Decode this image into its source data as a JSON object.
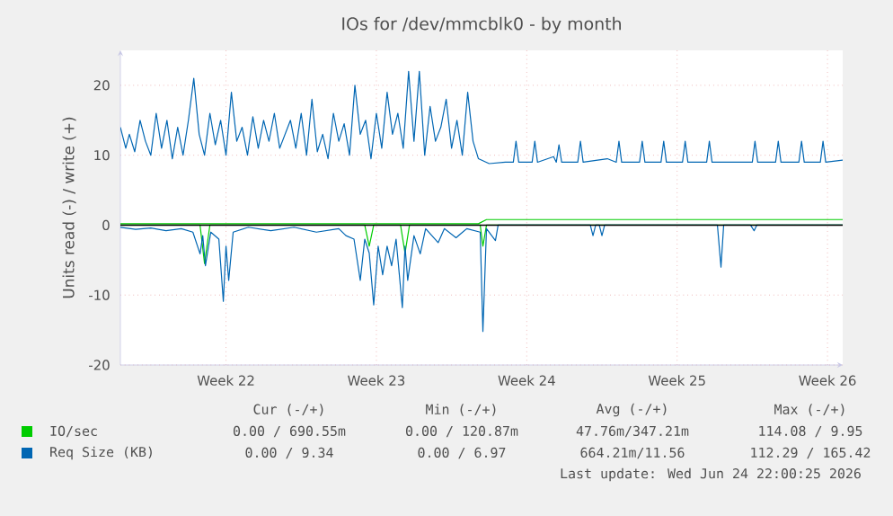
{
  "chart_data": {
    "type": "line",
    "title": "IOs for /dev/mmcblk0 - by month",
    "ylabel": "Units read (-) / write (+)",
    "xlim": [
      "2026-05-23T14:00",
      "2026-06-26T05:00"
    ],
    "ylim": [
      -20,
      25
    ],
    "xticks": [
      {
        "value": "2026-05-28T12:00",
        "label": "Week 22"
      },
      {
        "value": "2026-06-04T12:00",
        "label": "Week 23"
      },
      {
        "value": "2026-06-11T12:00",
        "label": "Week 24"
      },
      {
        "value": "2026-06-18T12:00",
        "label": "Week 25"
      },
      {
        "value": "2026-06-25T12:00",
        "label": "Week 26"
      }
    ],
    "yticks": [
      -20,
      -10,
      0,
      10,
      20
    ],
    "grid": true,
    "legend": "bottom",
    "ref_lines": [
      {
        "axis": "y",
        "value": 0,
        "color": "#000000"
      }
    ],
    "series": [
      {
        "name": "IO/sec",
        "color": "#00cc00",
        "x": [
          "2026-05-23T14:00",
          "2026-06-09T06:00",
          "2026-06-09T15:00",
          "2026-06-26T05:00"
        ],
        "values": [
          0.2,
          0.2,
          0.8,
          0.8
        ]
      },
      {
        "color": "#00cc00",
        "x": [
          "2026-05-23T14:00",
          "2026-05-27T07:00",
          "2026-05-27T12:00",
          "2026-05-27T18:00",
          "2026-06-03T23:00",
          "2026-06-04T04:00",
          "2026-06-04T09:00",
          "2026-06-05T15:00",
          "2026-06-05T20:00",
          "2026-06-06T01:00",
          "2026-06-09T08:00",
          "2026-06-09T11:00",
          "2026-06-09T15:00",
          "2026-06-26T05:00"
        ],
        "values": [
          0,
          0,
          -5.5,
          0,
          0,
          -3,
          0,
          0,
          -4,
          0,
          0,
          -3,
          0,
          0
        ]
      },
      {
        "name": "Req Size (KB)",
        "color": "#0066b3",
        "x": [
          "2026-05-23T14:00",
          "2026-05-23T20:00",
          "2026-05-24T00:00",
          "2026-05-24T06:00",
          "2026-05-24T12:00",
          "2026-05-24T18:00",
          "2026-05-25T00:00",
          "2026-05-25T06:00",
          "2026-05-25T12:00",
          "2026-05-25T18:00",
          "2026-05-26T00:00",
          "2026-05-26T06:00",
          "2026-05-26T12:00",
          "2026-05-26T18:00",
          "2026-05-27T00:00",
          "2026-05-27T06:00",
          "2026-05-27T12:00",
          "2026-05-27T18:00",
          "2026-05-28T00:00",
          "2026-05-28T06:00",
          "2026-05-28T12:00",
          "2026-05-28T18:00",
          "2026-05-29T00:00",
          "2026-05-29T06:00",
          "2026-05-29T12:00",
          "2026-05-29T18:00",
          "2026-05-30T00:00",
          "2026-05-30T06:00",
          "2026-05-30T12:00",
          "2026-05-30T18:00",
          "2026-05-31T00:00",
          "2026-05-31T06:00",
          "2026-05-31T12:00",
          "2026-05-31T18:00",
          "2026-06-01T00:00",
          "2026-06-01T06:00",
          "2026-06-01T12:00",
          "2026-06-01T18:00",
          "2026-06-02T00:00",
          "2026-06-02T06:00",
          "2026-06-02T12:00",
          "2026-06-02T18:00",
          "2026-06-03T00:00",
          "2026-06-03T06:00",
          "2026-06-03T12:00",
          "2026-06-03T18:00",
          "2026-06-04T00:00",
          "2026-06-04T06:00",
          "2026-06-04T12:00",
          "2026-06-04T18:00",
          "2026-06-05T00:00",
          "2026-06-05T06:00",
          "2026-06-05T12:00",
          "2026-06-05T18:00",
          "2026-06-06T00:00",
          "2026-06-06T06:00",
          "2026-06-06T12:00",
          "2026-06-06T18:00",
          "2026-06-07T00:00",
          "2026-06-07T06:00",
          "2026-06-07T12:00",
          "2026-06-07T18:00",
          "2026-06-08T00:00",
          "2026-06-08T06:00",
          "2026-06-08T12:00",
          "2026-06-08T18:00",
          "2026-06-09T00:00",
          "2026-06-09T06:00",
          "2026-06-09T18:00",
          "2026-06-10T12:00",
          "2026-06-10T21:00",
          "2026-06-11T00:00",
          "2026-06-11T03:00",
          "2026-06-11T18:00",
          "2026-06-11T21:00",
          "2026-06-12T00:00",
          "2026-06-12T18:00",
          "2026-06-12T21:00",
          "2026-06-13T00:00",
          "2026-06-13T03:00",
          "2026-06-13T21:00",
          "2026-06-14T00:00",
          "2026-06-14T03:00",
          "2026-06-15T06:00",
          "2026-06-15T16:00",
          "2026-06-15T19:00",
          "2026-06-15T22:00",
          "2026-06-16T18:00",
          "2026-06-16T21:00",
          "2026-06-17T00:00",
          "2026-06-17T18:00",
          "2026-06-17T21:00",
          "2026-06-18T00:00",
          "2026-06-18T18:00",
          "2026-06-18T21:00",
          "2026-06-19T00:00",
          "2026-06-19T21:00",
          "2026-06-20T00:00",
          "2026-06-20T03:00",
          "2026-06-21T12:00",
          "2026-06-22T00:00",
          "2026-06-22T03:00",
          "2026-06-22T06:00",
          "2026-06-23T02:00",
          "2026-06-23T05:00",
          "2026-06-23T08:00",
          "2026-06-24T04:00",
          "2026-06-24T07:00",
          "2026-06-24T10:00",
          "2026-06-25T04:00",
          "2026-06-25T07:00",
          "2026-06-25T10:00",
          "2026-06-26T05:00"
        ],
        "values": [
          14,
          11,
          13,
          10.5,
          15,
          12,
          10,
          16,
          11,
          15,
          9.5,
          14,
          10,
          15,
          21,
          13,
          10,
          16,
          11.5,
          15,
          10,
          19,
          12,
          14,
          10,
          15.5,
          11,
          15,
          12,
          16,
          11,
          13,
          15,
          11,
          16,
          10,
          18,
          10.5,
          13,
          9.5,
          16,
          12,
          14.5,
          10,
          20,
          13,
          15,
          9.5,
          16,
          11,
          19,
          13,
          16,
          11,
          22,
          12,
          22,
          10,
          17,
          12,
          14,
          18,
          11,
          15,
          10,
          19,
          12,
          9.5,
          8.8,
          9,
          9,
          12,
          9,
          9,
          12,
          9,
          9.8,
          9,
          11.5,
          9,
          9,
          12,
          9,
          9.5,
          9,
          12,
          9,
          9,
          12,
          9,
          9,
          12,
          9,
          9,
          12,
          9,
          9,
          12,
          9,
          9,
          9,
          12,
          9,
          9,
          12,
          9,
          9,
          12,
          9,
          9,
          12,
          9,
          9.3
        ]
      },
      {
        "color": "#0066b3",
        "x": [
          "2026-05-23T14:00",
          "2026-05-24T07:00",
          "2026-05-25T00:00",
          "2026-05-25T17:00",
          "2026-05-26T10:00",
          "2026-05-26T23:00",
          "2026-05-27T07:00",
          "2026-05-27T10:00",
          "2026-05-27T13:00",
          "2026-05-27T19:00",
          "2026-05-28T04:00",
          "2026-05-28T09:00",
          "2026-05-28T12:00",
          "2026-05-28T15:00",
          "2026-05-28T20:00",
          "2026-05-29T13:00",
          "2026-05-30T14:00",
          "2026-05-31T16:00",
          "2026-06-01T17:00",
          "2026-06-02T18:00",
          "2026-06-03T02:00",
          "2026-06-03T11:00",
          "2026-06-03T18:00",
          "2026-06-03T23:00",
          "2026-06-04T04:00",
          "2026-06-04T09:00",
          "2026-06-04T14:00",
          "2026-06-04T19:00",
          "2026-06-05T00:00",
          "2026-06-05T05:00",
          "2026-06-05T10:00",
          "2026-06-05T17:00",
          "2026-06-05T20:00",
          "2026-06-05T23:00",
          "2026-06-06T06:00",
          "2026-06-06T13:00",
          "2026-06-06T19:00",
          "2026-06-07T09:00",
          "2026-06-07T16:00",
          "2026-06-08T05:00",
          "2026-06-08T17:00",
          "2026-06-09T08:00",
          "2026-06-09T11:00",
          "2026-06-09T15:00",
          "2026-06-10T01:00",
          "2026-06-10T04:00",
          "2026-06-14T11:00",
          "2026-06-14T14:00",
          "2026-06-14T17:00",
          "2026-06-14T21:00",
          "2026-06-15T00:00",
          "2026-06-15T03:00",
          "2026-06-20T09:00",
          "2026-06-20T13:00",
          "2026-06-20T16:00",
          "2026-06-21T22:00",
          "2026-06-22T02:00",
          "2026-06-22T05:00",
          "2026-06-26T05:00"
        ],
        "values": [
          -0.3,
          -0.6,
          -0.4,
          -0.8,
          -0.5,
          -1,
          -4.1,
          -1.5,
          -5.8,
          -1,
          -2,
          -10.9,
          -3,
          -7.9,
          -1,
          -0.3,
          -0.8,
          -0.3,
          -1,
          -0.5,
          -1.5,
          -2,
          -7.9,
          -2,
          -4,
          -11.4,
          -3,
          -7.1,
          -3,
          -5.8,
          -2,
          -11.8,
          -3,
          -7.9,
          -1.5,
          -4.1,
          -0.5,
          -2.5,
          -0.5,
          -1.8,
          -0.5,
          -1,
          -15.2,
          -0.5,
          -2.2,
          0,
          0,
          -1.5,
          0,
          0,
          -1.5,
          0,
          0,
          -6,
          0,
          0,
          -0.8,
          0,
          0
        ]
      }
    ],
    "annotations": [
      "Cur (-/+)",
      "Min (-/+)",
      "Avg (-/+)",
      "Max (-/+)",
      "0.00 / 690.55m",
      "0.00 / 120.87m",
      "47.76m/347.21m",
      "114.08 / 9.95",
      "0.00 / 9.34",
      "0.00 / 6.97",
      "664.21m/11.56",
      "112.29 / 165.42",
      "Last update: Wed Jun 24 22:00:25 2026"
    ]
  }
}
